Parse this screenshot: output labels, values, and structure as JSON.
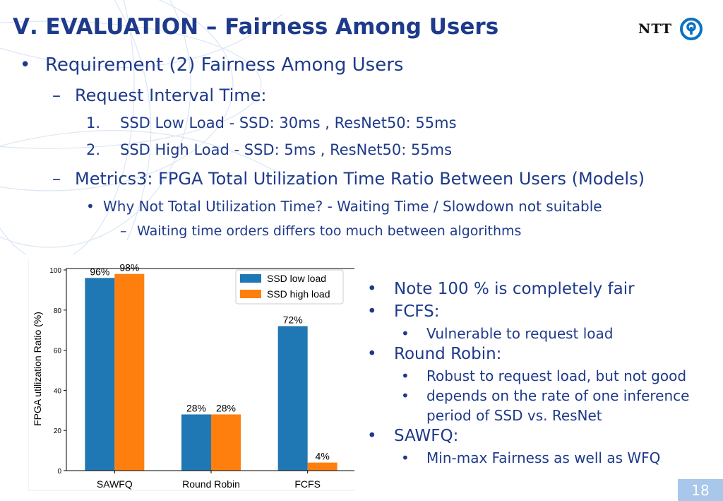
{
  "slide": {
    "title": "Ⅴ. EVALUATION – Fairness Among Users",
    "logo_text": "NTT",
    "page_number": "18",
    "colors": {
      "title": "#1e3a8a",
      "series_low": "#1f77b4",
      "series_high": "#ff7f0e",
      "page_box": "#a8c7ea"
    }
  },
  "bullets": {
    "b1": {
      "marker": "•",
      "text": "Requirement (2) Fairness Among Users"
    },
    "b1_1": {
      "marker": "–",
      "text": "Request Interval Time:"
    },
    "b1_1_1": {
      "marker": "1.",
      "text": "SSD Low Load -  SSD: 30ms ,  ResNet50: 55ms"
    },
    "b1_1_2": {
      "marker": "2.",
      "text": "SSD High Load - SSD: 5ms ,  ResNet50: 55ms"
    },
    "b1_2": {
      "marker": "–",
      "text": "Metrics3: FPGA Total Utilization Time Ratio Between Users (Models)"
    },
    "b1_2_1": {
      "marker": "•",
      "text": "Why Not Total Utilization Time? - Waiting Time / Slowdown not suitable"
    },
    "b1_2_1_1": {
      "marker": "–",
      "text": "Waiting time orders differs too much between algorithms"
    }
  },
  "notes": {
    "n1": {
      "marker": "•",
      "text": "Note 100 % is completely fair"
    },
    "n2": {
      "marker": "•",
      "text": "FCFS:"
    },
    "n2_1": {
      "marker": "•",
      "text": "Vulnerable to request load"
    },
    "n3": {
      "marker": "•",
      "text": "Round Robin:"
    },
    "n3_1": {
      "marker": "•",
      "text": "Robust to request load, but not good"
    },
    "n3_2": {
      "marker": "•",
      "text": "depends on the rate of one inference"
    },
    "n3_2b": {
      "text": "period of SSD vs. ResNet"
    },
    "n4": {
      "marker": "•",
      "text": "SAWFQ:"
    },
    "n4_1": {
      "marker": "•",
      "text": "Min-max Fairness as well as WFQ"
    }
  },
  "chart_data": {
    "type": "bar",
    "categories": [
      "SAWFQ",
      "Round Robin",
      "FCFS"
    ],
    "series": [
      {
        "name": "SSD low load",
        "values": [
          96,
          28,
          72
        ],
        "labels": [
          "96%",
          "28%",
          "72%"
        ],
        "color": "#1f77b4"
      },
      {
        "name": "SSD high load",
        "values": [
          98,
          28,
          4
        ],
        "labels": [
          "98%",
          "28%",
          "4%"
        ],
        "color": "#ff7f0e"
      }
    ],
    "ylabel": "FPGA utilization Ratio (%)",
    "xlabel": "",
    "ylim": [
      0,
      100
    ],
    "yticks": [
      "0",
      "20",
      "40",
      "60",
      "80",
      "100"
    ],
    "legend_position": "top-right",
    "grid": false
  }
}
